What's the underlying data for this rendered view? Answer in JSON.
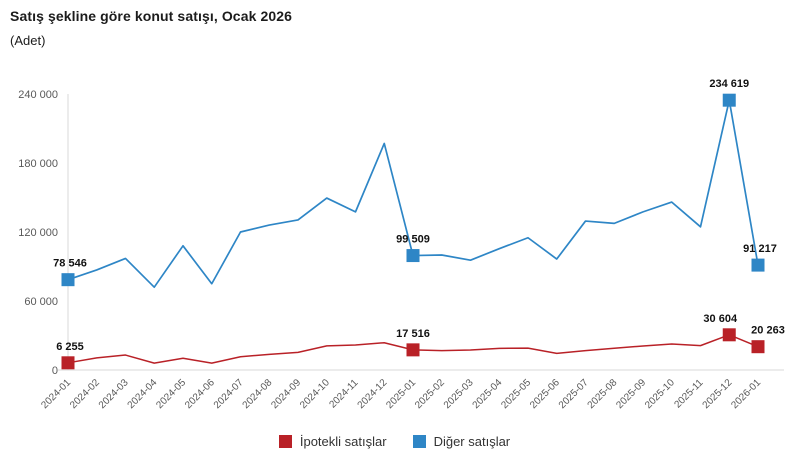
{
  "header": {
    "title": "Satış şekline göre konut satışı, Ocak 2026",
    "subtitle": "(Adet)"
  },
  "legend": {
    "items": [
      {
        "label": "İpotekli satışlar"
      },
      {
        "label": "Diğer satışlar"
      }
    ]
  },
  "colors": {
    "mortgaged_red": "#b92127",
    "other_blue": "#2e86c6",
    "axis_line": "#dadada",
    "tick_text": "#595959",
    "data_label_text": "#111111"
  },
  "chart_data": {
    "type": "line",
    "title": "Satış şekline göre konut satışı, Ocak 2026",
    "ylabel": "(Adet)",
    "grid": false,
    "legend_position": "bottom",
    "ylim": [
      0,
      240000
    ],
    "yticks": [
      0,
      60000,
      120000,
      180000,
      240000
    ],
    "ytick_labels": [
      "0",
      "60 000",
      "120 000",
      "180 000",
      "240 000"
    ],
    "categories": [
      "2024-01",
      "2024-02",
      "2024-03",
      "2024-04",
      "2024-05",
      "2024-06",
      "2024-07",
      "2024-08",
      "2024-09",
      "2024-10",
      "2024-11",
      "2024-12",
      "2025-01",
      "2025-02",
      "2025-03",
      "2025-04",
      "2025-05",
      "2025-06",
      "2025-07",
      "2025-08",
      "2025-09",
      "2025-10",
      "2025-11",
      "2025-12",
      "2026-01"
    ],
    "series": [
      {
        "name": "Diğer satışlar",
        "color": "#2e86c6",
        "values": [
          78546,
          87000,
          97000,
          72000,
          108000,
          75000,
          120000,
          126000,
          130500,
          149500,
          137500,
          197000,
          99509,
          100000,
          95500,
          105500,
          115000,
          96500,
          129500,
          127500,
          137500,
          146000,
          124500,
          234619,
          91217
        ],
        "labeled_points": [
          {
            "index": 0,
            "text": "78 546",
            "dx": 2
          },
          {
            "index": 12,
            "text": "99 509",
            "dx": 0
          },
          {
            "index": 23,
            "text": "234 619",
            "dx": 0
          },
          {
            "index": 24,
            "text": "91 217",
            "dx": 2
          }
        ]
      },
      {
        "name": "İpotekli satışlar",
        "color": "#b92127",
        "values": [
          6255,
          10500,
          13000,
          6000,
          10200,
          6000,
          11500,
          13600,
          15300,
          21000,
          21700,
          23700,
          17516,
          16800,
          17400,
          18800,
          19000,
          14500,
          16800,
          18900,
          20900,
          22600,
          21200,
          30604,
          20263
        ],
        "labeled_points": [
          {
            "index": 0,
            "text": "6 255",
            "dx": 2
          },
          {
            "index": 12,
            "text": "17 516",
            "dx": 0
          },
          {
            "index": 23,
            "text": "30 604",
            "dx": -9
          },
          {
            "index": 24,
            "text": "20 263",
            "dx": 10
          }
        ]
      }
    ]
  }
}
